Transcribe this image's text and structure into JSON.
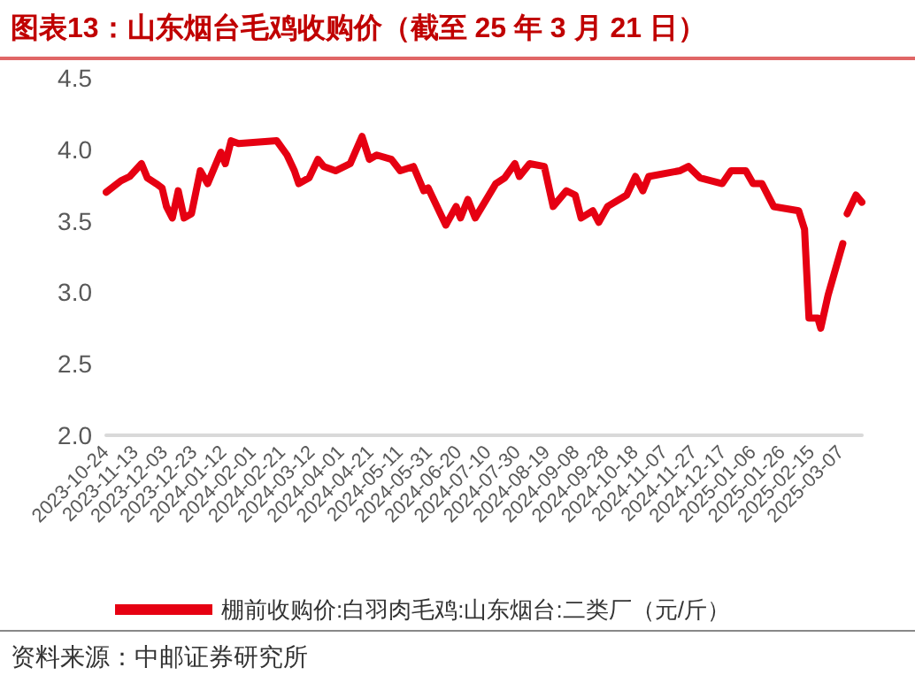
{
  "chart_data": {
    "type": "line",
    "title": "图表13：山东烟台毛鸡收购价（截至 25 年 3 月 21 日）",
    "annotations": [
      "资料来源：中邮证券研究所"
    ],
    "x": [
      "2023-10-24",
      "2023-11-03",
      "2023-11-09",
      "2023-11-17",
      "2023-11-21",
      "2023-11-27",
      "2023-12-01",
      "2023-12-04",
      "2023-12-08",
      "2023-12-12",
      "2023-12-16",
      "2023-12-21",
      "2023-12-27",
      "2024-01-01",
      "2024-01-10",
      "2024-01-13",
      "2024-01-17",
      "2024-01-22",
      "2024-02-17",
      "2024-02-24",
      "2024-02-29",
      "2024-03-03",
      "2024-03-10",
      "2024-03-16",
      "2024-03-20",
      "2024-03-28",
      "2024-04-07",
      "2024-04-15",
      "2024-04-20",
      "2024-04-25",
      "2024-05-05",
      "2024-05-11",
      "2024-05-20",
      "2024-05-27",
      "2024-05-30",
      "2024-06-05",
      "2024-06-11",
      "2024-06-18",
      "2024-06-21",
      "2024-06-26",
      "2024-07-01",
      "2024-07-15",
      "2024-07-21",
      "2024-07-28",
      "2024-07-31",
      "2024-08-07",
      "2024-08-17",
      "2024-08-23",
      "2024-09-01",
      "2024-09-07",
      "2024-09-11",
      "2024-09-19",
      "2024-09-23",
      "2024-09-29",
      "2024-10-12",
      "2024-10-18",
      "2024-10-23",
      "2024-10-27",
      "2024-11-17",
      "2024-11-23",
      "2024-12-01",
      "2024-12-16",
      "2024-12-22",
      "2025-01-01",
      "2025-01-06",
      "2025-01-12",
      "2025-01-20",
      "2025-02-06",
      "2025-02-10",
      "2025-02-13",
      "2025-02-19",
      "2025-02-21",
      "2025-02-26",
      "2025-03-08",
      "2025-03-10",
      "2025-03-11",
      "2025-03-17",
      "2025-03-21"
    ],
    "series": [
      {
        "name": "棚前收购价:白羽肉毛鸡:山东烟台:二类厂（元/斤）",
        "color": "#e60012",
        "values": [
          3.7,
          3.78,
          3.81,
          3.9,
          3.8,
          3.76,
          3.73,
          3.6,
          3.52,
          3.71,
          3.52,
          3.55,
          3.85,
          3.76,
          3.98,
          3.9,
          4.06,
          4.04,
          4.06,
          3.96,
          3.85,
          3.76,
          3.8,
          3.93,
          3.88,
          3.85,
          3.9,
          4.09,
          3.93,
          3.96,
          3.93,
          3.85,
          3.88,
          3.71,
          3.73,
          3.6,
          3.47,
          3.6,
          3.52,
          3.65,
          3.52,
          3.76,
          3.8,
          3.9,
          3.81,
          3.9,
          3.88,
          3.6,
          3.71,
          3.68,
          3.52,
          3.57,
          3.49,
          3.6,
          3.68,
          3.81,
          3.71,
          3.81,
          3.85,
          3.88,
          3.8,
          3.76,
          3.85,
          3.85,
          3.76,
          3.76,
          3.6,
          3.57,
          3.44,
          2.82,
          2.82,
          2.75,
          2.98,
          3.34,
          null,
          3.55,
          3.68,
          3.63
        ]
      }
    ],
    "xlim": [
      "2023-10-24",
      "2025-03-21"
    ],
    "xticks": [
      "2023-10-24",
      "2023-11-13",
      "2023-12-03",
      "2023-12-23",
      "2024-01-12",
      "2024-02-01",
      "2024-02-21",
      "2024-03-12",
      "2024-04-01",
      "2024-04-21",
      "2024-05-11",
      "2024-05-31",
      "2024-06-20",
      "2024-07-10",
      "2024-07-30",
      "2024-08-19",
      "2024-09-08",
      "2024-09-28",
      "2024-10-18",
      "2024-11-07",
      "2024-11-27",
      "2024-12-17",
      "2025-01-06",
      "2025-01-26",
      "2025-02-15",
      "2025-03-07"
    ],
    "ylim": [
      2.0,
      4.5
    ],
    "yticks": [
      {
        "value": 2.0,
        "label": "2.0"
      },
      {
        "value": 2.5,
        "label": "2.5"
      },
      {
        "value": 3.0,
        "label": "3.0"
      },
      {
        "value": 3.5,
        "label": "3.5"
      },
      {
        "value": 4.0,
        "label": "4.0"
      },
      {
        "value": 4.5,
        "label": "4.5"
      }
    ],
    "grid": false,
    "legend": "bottom",
    "marker": "none",
    "line_style": "solid"
  }
}
